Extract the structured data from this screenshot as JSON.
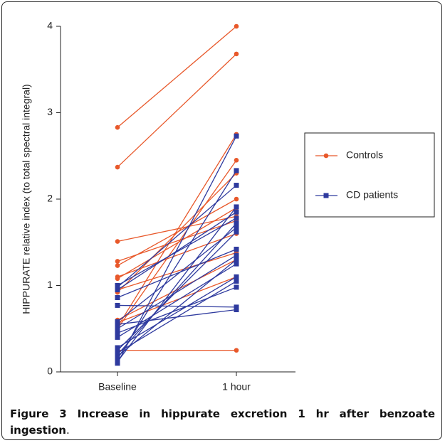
{
  "chart_data": {
    "type": "paired-line",
    "y_label": "HIPPURATE relative index (to total spectral integral)",
    "categories": [
      "Baseline",
      "1 hour"
    ],
    "ylim": [
      0,
      4
    ],
    "yticks": [
      0,
      1,
      2,
      3,
      4
    ],
    "legend": "right",
    "series": [
      {
        "name": "Controls",
        "color": "#e8582a",
        "marker": "circle",
        "values": [
          [
            2.83,
            4.0
          ],
          [
            2.37,
            3.68
          ],
          [
            1.51,
            1.8
          ],
          [
            1.28,
            1.75
          ],
          [
            1.23,
            2.0
          ],
          [
            1.1,
            1.6
          ],
          [
            1.08,
            1.9
          ],
          [
            0.95,
            1.38
          ],
          [
            0.92,
            2.3
          ],
          [
            0.6,
            1.3
          ],
          [
            0.57,
            1.1
          ],
          [
            0.52,
            2.75
          ],
          [
            0.5,
            2.45
          ],
          [
            0.25,
            0.25
          ]
        ]
      },
      {
        "name": "CD patients",
        "color": "#2e3a9e",
        "marker": "square",
        "values": [
          [
            0.1,
            2.73
          ],
          [
            0.12,
            1.91
          ],
          [
            0.15,
            2.33
          ],
          [
            0.18,
            1.3
          ],
          [
            0.2,
            1.72
          ],
          [
            0.22,
            1.05
          ],
          [
            0.25,
            1.62
          ],
          [
            0.28,
            1.1
          ],
          [
            0.4,
            1.25
          ],
          [
            0.45,
            0.98
          ],
          [
            0.5,
            1.35
          ],
          [
            0.55,
            0.72
          ],
          [
            0.58,
            1.67
          ],
          [
            0.77,
            0.75
          ],
          [
            0.86,
            1.42
          ],
          [
            0.95,
            1.85
          ],
          [
            0.98,
            2.16
          ],
          [
            1.0,
            1.78
          ]
        ]
      }
    ],
    "caption_bold": "Figure 3 Increase in hippurate excretion 1 hr after benzoate ingestion",
    "caption_end": "."
  }
}
